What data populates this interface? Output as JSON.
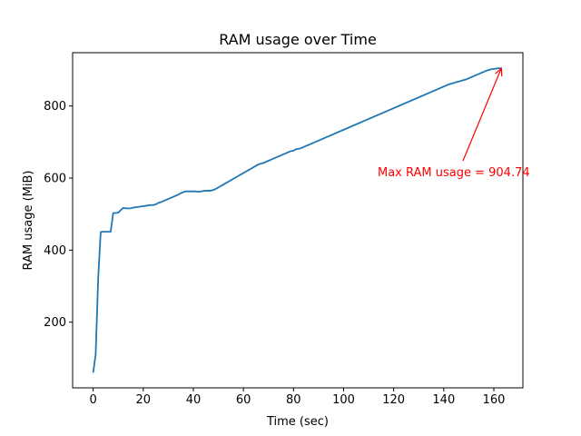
{
  "chart_data": {
    "type": "line",
    "title": "RAM usage over Time",
    "xlabel": "Time (sec)",
    "ylabel": "RAM usage (MiB)",
    "xlim": [
      -8.2,
      171.6
    ],
    "ylim": [
      17.7,
      948.0
    ],
    "xticks": [
      0,
      20,
      40,
      60,
      80,
      100,
      120,
      140,
      160
    ],
    "yticks": [
      200,
      400,
      600,
      800
    ],
    "grid": false,
    "series": [
      {
        "color": "#1f77b4",
        "x": [
          0,
          1,
          2,
          3,
          4,
          5,
          6,
          7,
          8,
          9,
          10,
          11,
          12,
          13,
          14,
          15,
          16,
          17,
          18,
          19,
          20,
          21,
          22,
          23,
          24,
          25,
          26,
          27,
          28,
          29,
          30,
          31,
          32,
          33,
          34,
          35,
          36,
          37,
          38,
          39,
          40,
          41,
          42,
          43,
          44,
          45,
          46,
          47,
          48,
          49,
          50,
          51,
          52,
          53,
          54,
          55,
          56,
          57,
          58,
          59,
          60,
          61,
          62,
          63,
          64,
          65,
          66,
          67,
          68,
          69,
          70,
          71,
          72,
          73,
          74,
          75,
          76,
          77,
          78,
          79,
          80,
          81,
          82,
          83,
          84,
          85,
          86,
          87,
          88,
          89,
          90,
          91,
          92,
          93,
          94,
          95,
          96,
          97,
          98,
          99,
          100,
          101,
          102,
          103,
          104,
          105,
          106,
          107,
          108,
          109,
          110,
          111,
          112,
          113,
          114,
          115,
          116,
          117,
          118,
          119,
          120,
          121,
          122,
          123,
          124,
          125,
          126,
          127,
          128,
          129,
          130,
          131,
          132,
          133,
          134,
          135,
          136,
          137,
          138,
          139,
          140,
          141,
          142,
          143,
          144,
          145,
          146,
          147,
          148,
          149,
          150,
          151,
          152,
          153,
          154,
          155,
          156,
          157,
          158,
          159,
          160,
          161,
          162,
          163
        ],
        "y": [
          60,
          110,
          320,
          450,
          451,
          451,
          451,
          451,
          503,
          503,
          504,
          511,
          517,
          516,
          516,
          516,
          518,
          519,
          520,
          521,
          522,
          523,
          524,
          525,
          525,
          527,
          531,
          533,
          536,
          539,
          542,
          545,
          548,
          551,
          554,
          558,
          561,
          563,
          563,
          563,
          563,
          563,
          562,
          563,
          564,
          565,
          565,
          565,
          567,
          570,
          574,
          578,
          582,
          586,
          590,
          594,
          598,
          602,
          606,
          610,
          614,
          618,
          622,
          626,
          630,
          634,
          638,
          640,
          642,
          645,
          648,
          651,
          654,
          657,
          660,
          663,
          666,
          669,
          672,
          675,
          676,
          680,
          681,
          683,
          686,
          689,
          692,
          695,
          698,
          701,
          704,
          707,
          710,
          713,
          716,
          719,
          722,
          725,
          728,
          731,
          734,
          737,
          740,
          743,
          746,
          749,
          752,
          755,
          758,
          761,
          764,
          767,
          770,
          773,
          776,
          779,
          782,
          785,
          788,
          791,
          794,
          797,
          800,
          803,
          806,
          809,
          812,
          815,
          818,
          821,
          824,
          827,
          830,
          833,
          836,
          839,
          842,
          845,
          848,
          851,
          854,
          857,
          860,
          862,
          864,
          866,
          868,
          870,
          872,
          874,
          877,
          880,
          883,
          886,
          889,
          892,
          895,
          898,
          900,
          902,
          903,
          904,
          904.74,
          904.74
        ]
      }
    ],
    "annotation": {
      "text": "Max RAM usage = 904.74",
      "color": "#ff0000",
      "point": [
        163,
        904.74
      ],
      "text_anchor": [
        114,
        610
      ]
    }
  }
}
